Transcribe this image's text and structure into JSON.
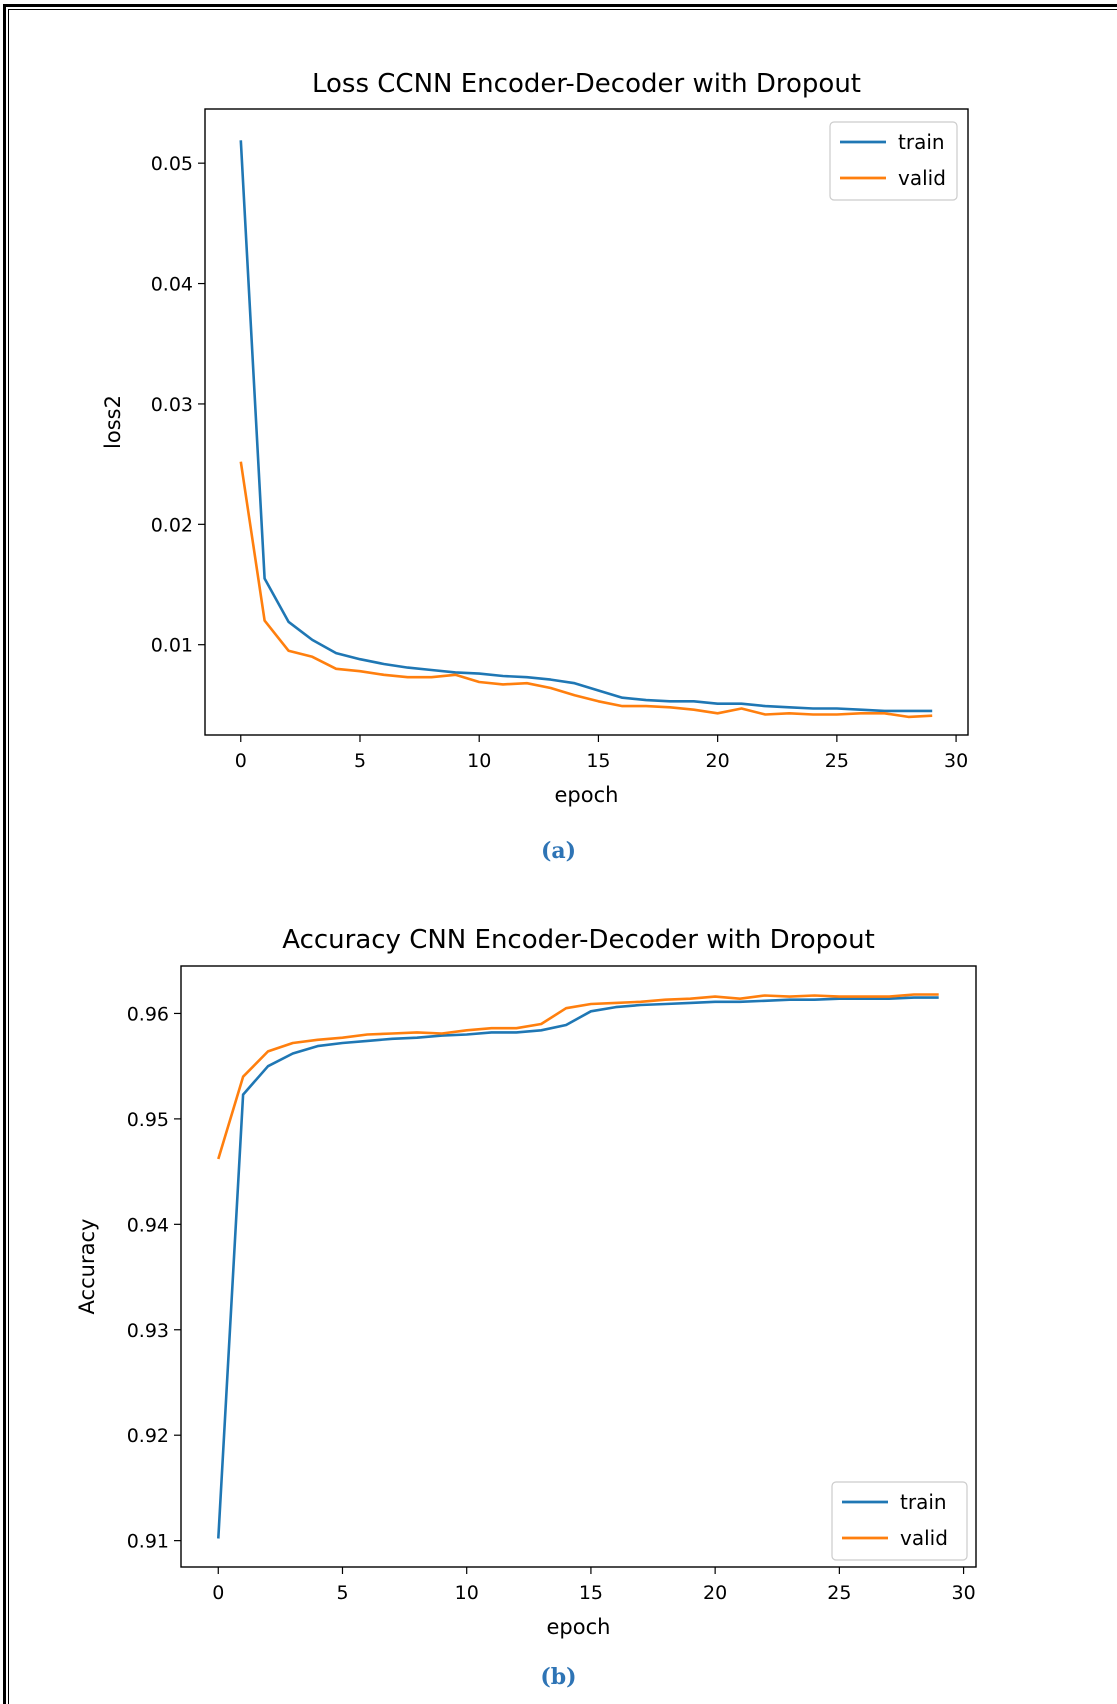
{
  "chart_data": [
    {
      "type": "line",
      "title": "Loss CCNN Encoder-Decoder with  Dropout",
      "xlabel": "epoch",
      "ylabel": "loss2",
      "xlim": [
        -1.5,
        30.5
      ],
      "ylim": [
        0.0025,
        0.0545
      ],
      "xticks": [
        0,
        5,
        10,
        15,
        20,
        25,
        30
      ],
      "yticks": [
        0.01,
        0.02,
        0.03,
        0.04,
        0.05
      ],
      "ytick_labels": [
        "0.01",
        "0.02",
        "0.03",
        "0.04",
        "0.05"
      ],
      "legend": "top-right",
      "grid": false,
      "caption": "(a)",
      "x": [
        0,
        1,
        2,
        3,
        4,
        5,
        6,
        7,
        8,
        9,
        10,
        11,
        12,
        13,
        14,
        15,
        16,
        17,
        18,
        19,
        20,
        21,
        22,
        23,
        24,
        25,
        26,
        27,
        28,
        29
      ],
      "series": [
        {
          "name": "train",
          "color": "#1f77b4",
          "values": [
            0.0519,
            0.0155,
            0.0119,
            0.0104,
            0.0093,
            0.0088,
            0.0084,
            0.0081,
            0.0079,
            0.0077,
            0.0076,
            0.0074,
            0.0073,
            0.0071,
            0.0068,
            0.0062,
            0.0056,
            0.0054,
            0.0053,
            0.0053,
            0.0051,
            0.0051,
            0.0049,
            0.0048,
            0.0047,
            0.0047,
            0.0046,
            0.0045,
            0.0045,
            0.0045
          ]
        },
        {
          "name": "valid",
          "color": "#ff7f0e",
          "values": [
            0.0252,
            0.012,
            0.0095,
            0.009,
            0.008,
            0.0078,
            0.0075,
            0.0073,
            0.0073,
            0.0075,
            0.0069,
            0.0067,
            0.0068,
            0.0064,
            0.0058,
            0.0053,
            0.0049,
            0.0049,
            0.0048,
            0.0046,
            0.0043,
            0.0047,
            0.0042,
            0.0043,
            0.0042,
            0.0042,
            0.0043,
            0.0043,
            0.004,
            0.0041
          ]
        }
      ]
    },
    {
      "type": "line",
      "title": "Accuracy CNN Encoder-Decoder with  Dropout",
      "xlabel": "epoch",
      "ylabel": "Accuracy",
      "xlim": [
        -1.5,
        30.5
      ],
      "ylim": [
        0.9075,
        0.9645
      ],
      "xticks": [
        0,
        5,
        10,
        15,
        20,
        25,
        30
      ],
      "yticks": [
        0.91,
        0.92,
        0.93,
        0.94,
        0.95,
        0.96
      ],
      "ytick_labels": [
        "0.91",
        "0.92",
        "0.93",
        "0.94",
        "0.95",
        "0.96"
      ],
      "legend": "bottom-right",
      "grid": false,
      "caption": "(b)",
      "x": [
        0,
        1,
        2,
        3,
        4,
        5,
        6,
        7,
        8,
        9,
        10,
        11,
        12,
        13,
        14,
        15,
        16,
        17,
        18,
        19,
        20,
        21,
        22,
        23,
        24,
        25,
        26,
        27,
        28,
        29
      ],
      "series": [
        {
          "name": "train",
          "color": "#1f77b4",
          "values": [
            0.9102,
            0.9523,
            0.955,
            0.9562,
            0.9569,
            0.9572,
            0.9574,
            0.9576,
            0.9577,
            0.9579,
            0.958,
            0.9582,
            0.9582,
            0.9584,
            0.9589,
            0.9602,
            0.9606,
            0.9608,
            0.9609,
            0.961,
            0.9611,
            0.9611,
            0.9612,
            0.9613,
            0.9613,
            0.9614,
            0.9614,
            0.9614,
            0.9615,
            0.9615
          ]
        },
        {
          "name": "valid",
          "color": "#ff7f0e",
          "values": [
            0.9462,
            0.954,
            0.9564,
            0.9572,
            0.9575,
            0.9577,
            0.958,
            0.9581,
            0.9582,
            0.9581,
            0.9584,
            0.9586,
            0.9586,
            0.959,
            0.9605,
            0.9609,
            0.961,
            0.9611,
            0.9613,
            0.9614,
            0.9616,
            0.9614,
            0.9617,
            0.9616,
            0.9617,
            0.9616,
            0.9616,
            0.9616,
            0.9618,
            0.9618
          ]
        }
      ]
    }
  ]
}
